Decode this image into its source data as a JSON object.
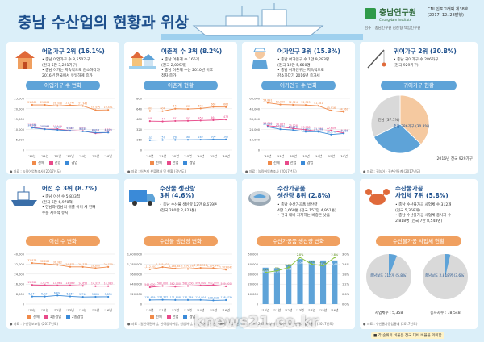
{
  "header": {
    "title": "충남 수산업의 현황과 위상",
    "logo_name": "충남연구원",
    "logo_eng": "ChungNam Institute",
    "ci_line1": "CNI 인포그래픽 제38호",
    "ci_line2": "(2017. 12. 28발행)",
    "credit": "감수 : 충남연구원 김찬형 책임연구원"
  },
  "sections": [
    {
      "heading": "어업가구 2위 (16.1%)",
      "bullets": [
        "• 충남 어업가구 수 8,550가구",
        "  (전국 5만 3,221가구)",
        "• 충남 어가는 지속적으로 감소하다가",
        "  2016년 전국에서 유일하게 증가"
      ],
      "chart_title": "어업가구 수 변화",
      "source": "● 자료 : 농림어업총조사 (2017년도)"
    },
    {
      "heading": "어촌계 수 3위 (8.2%)",
      "bullets": [
        "• 충남 어촌계 수 166개",
        "  (전국 2,029개)",
        "• 충남 어촌계 수는 2010년 이후",
        "  점차 증가"
      ],
      "chart_title": "어촌계 현황",
      "source": "● 자료 : 어촌계 분류평가 및 현황 (각년도)"
    },
    {
      "heading": "어가인구 3위 (15.3%)",
      "bullets": [
        "• 충남 어가인구 수 1만 9,283명",
        "  (전국 12만 5,660명)",
        "• 충남 어가인구는 지속적으로",
        "  감소하다가 2016년 증가세"
      ],
      "chart_title": "어가인구 수 변화",
      "source": "● 자료 : 농림어업총조사 (2017년도)"
    },
    {
      "heading": "귀어가구 2위 (30.8%)",
      "bullets": [
        "• 충남 귀어가구 수 286가구",
        "  (전국 929가구)"
      ],
      "chart_title": "귀어가구 현황",
      "source": "● 자료 : 귀농어 · 귀촌인통계 (2017년도)"
    },
    {
      "heading": "어선 수 3위 (8.7%)",
      "bullets": [
        "• 충남 어선 수 5,833척",
        "  (전국 6만 6,970척)",
        "• 전남과 경남의 뒤를 이어 세 번째",
        "  수준 지속적 유지"
      ],
      "chart_title": "어선 수 변화",
      "source": "● 자료 : 수산정보포털 (2017년도)"
    },
    {
      "heading1": "수산물 생산량",
      "heading2": "3위 (4.6%)",
      "bullets": [
        "• 충남 수산물 생산량 12만 8,679톤",
        "  (전국 280만 2,823톤)"
      ],
      "chart_title": "수산물 생산량 변화",
      "source": "● 자료 : 일반해면어업, 천해양식어업, 원양어업, 내수면어업 생산량 통계 (2017년도)"
    },
    {
      "heading1": "수산가공품",
      "heading2": "생산량 8위 (2.8%)",
      "bullets": [
        "• 충남 수산가공품 생산량",
        "  4만 3,668톤 (전국 157만 4,951톤)",
        "• 전국 대비 차지하는 비중은 낮음"
      ],
      "chart_title": "수산가공품 생산량 변화",
      "source": "● 자료 : 2014년부터 해양수산부 수산물가공업통계 (2017년도)"
    },
    {
      "heading1": "수산물가공",
      "heading2": "사업체 7위 (5.8%)",
      "bullets": [
        "• 충남 수산물가공 사업체 수 312개",
        "  (전국 5,358개)",
        "• 충남 수산물가공 사업체 종사자 수",
        "  2,818명 (전국 7만 8,548명)"
      ],
      "chart_title": "수산물가공 사업체 현황",
      "source": "● 자료 : 수산물가공업통계 (2017년도)"
    }
  ],
  "legend": {
    "total": "전체",
    "pro": "전업",
    "sub": "겸업",
    "one": "1종겸업",
    "two": "2종겸업"
  },
  "note": "■ 각 순위의 비율은 전국 대비 비율을 의미함",
  "watermark": "knews21.co.kr",
  "chart_data": [
    {
      "type": "line",
      "title": "어업가구 수 변화",
      "categories": [
        "'10년",
        "'11년",
        "'12년",
        "'13년",
        "'14년",
        "'15년",
        "'16년"
      ],
      "series": [
        {
          "name": "전체",
          "values": [
            21869,
            21864,
            21378,
            21747,
            21345,
            19375,
            19451
          ]
        },
        {
          "name": "전업",
          "values": [
            11021,
            10169,
            10149,
            9385,
            9219,
            8150,
            8550
          ]
        },
        {
          "name": "겸업",
          "values": [
            10768,
            10093,
            9753,
            9349,
            9050,
            8417,
            8473
          ]
        }
      ],
      "ylim": [
        0,
        25000
      ]
    },
    {
      "type": "line",
      "title": "어촌계 현황",
      "categories": [
        "'10년",
        "'11년",
        "'12년",
        "'13년",
        "'14년",
        "'15년",
        "'16년"
      ],
      "series": [
        {
          "name": "전체",
          "values": [
            607,
            604,
            641,
            637,
            645,
            668,
            666
          ]
        },
        {
          "name": "전업",
          "values": [
            448,
            444,
            451,
            453,
            458,
            464,
            473
          ]
        },
        {
          "name": "겸업",
          "values": [
            153,
            157,
            158,
            160,
            162,
            166,
            166
          ]
        }
      ],
      "ylim": [
        0,
        800
      ]
    },
    {
      "type": "line",
      "title": "어가인구 수 변화",
      "categories": [
        "'10년",
        "'11년",
        "'12년",
        "'13년",
        "'14년",
        "'15년",
        "'16년"
      ],
      "series": [
        {
          "name": "전체",
          "values": [
            54891,
            52900,
            52524,
            52323,
            51381,
            45916,
            44360
          ]
        },
        {
          "name": "전업",
          "values": [
            28318,
            26867,
            25128,
            23588,
            21780,
            22609,
            19826
          ]
        },
        {
          "name": "겸업",
          "values": [
            27002,
            24190,
            23270,
            21270,
            21258,
            18076,
            19283
          ]
        }
      ],
      "ylim": [
        0,
        60000
      ]
    },
    {
      "type": "pie",
      "title": "귀어가구 현황",
      "labels": [
        "전남",
        "충남",
        "기타"
      ],
      "values": [
        345,
        286,
        298
      ],
      "display": [
        "전남 (37.1%)",
        "충남 286가구 (30.8%)"
      ],
      "total_label": "2016년 전국 929가구"
    },
    {
      "type": "line",
      "title": "어선 수 변화",
      "categories": [
        "'10년",
        "'11년",
        "'12년",
        "'13년",
        "'14년",
        "'15년",
        "'16년"
      ],
      "series": [
        {
          "name": "전체",
          "values": [
            32873,
            32288,
            31382,
            29821,
            29776,
            28800,
            29770
          ]
        },
        {
          "name": "1종겸업",
          "values": [
            15325,
            15145,
            14964,
            14989,
            14655,
            14377,
            14383
          ]
        },
        {
          "name": "2종겸업",
          "values": [
            6047,
            6034,
            6891,
            6150,
            5716,
            5801,
            5833
          ]
        }
      ],
      "ylim": [
        0,
        40000
      ]
    },
    {
      "type": "line",
      "title": "수산물 생산량 변화",
      "categories": [
        "'10년",
        "'11년",
        "'12년",
        "'13년",
        "'14년",
        "'15년",
        "'16년"
      ],
      "series": [
        {
          "name": "전체",
          "values": [
            1112207,
            1185027,
            1138987,
            1125079,
            1158918,
            1154448,
            1103049
          ]
        },
        {
          "name": "전업",
          "values": [
            542000,
            582000,
            562000,
            582000,
            599000,
            612000,
            569000
          ]
        },
        {
          "name": "겸업",
          "values": [
            131479,
            138302,
            131808,
            131784,
            134004,
            118918,
            128679
          ]
        }
      ],
      "ylim": [
        0,
        1600000
      ]
    },
    {
      "type": "bar",
      "title": "수산가공품 생산량 변화",
      "categories": [
        "'10년",
        "'11년",
        "'12년",
        "'13년",
        "'14년",
        "'15년",
        "'16년"
      ],
      "values": [
        36456,
        36025,
        39062,
        45000,
        43668,
        43668,
        43668
      ],
      "share": [
        1.9,
        2.0,
        2.2,
        2.8,
        2.4,
        2.3,
        2.8
      ],
      "ylim": [
        0,
        50000
      ]
    },
    {
      "type": "pie",
      "title": "수산물가공 사업체 현황",
      "charts": [
        {
          "label": "충남보도 312개 (5.8%)",
          "share": 5.8,
          "total_label": "사업체수 : 5,358"
        },
        {
          "label": "충남보도 2,818명 (3.6%)",
          "share": 3.6,
          "total_label": "종사자수 : 78,548"
        }
      ]
    }
  ]
}
